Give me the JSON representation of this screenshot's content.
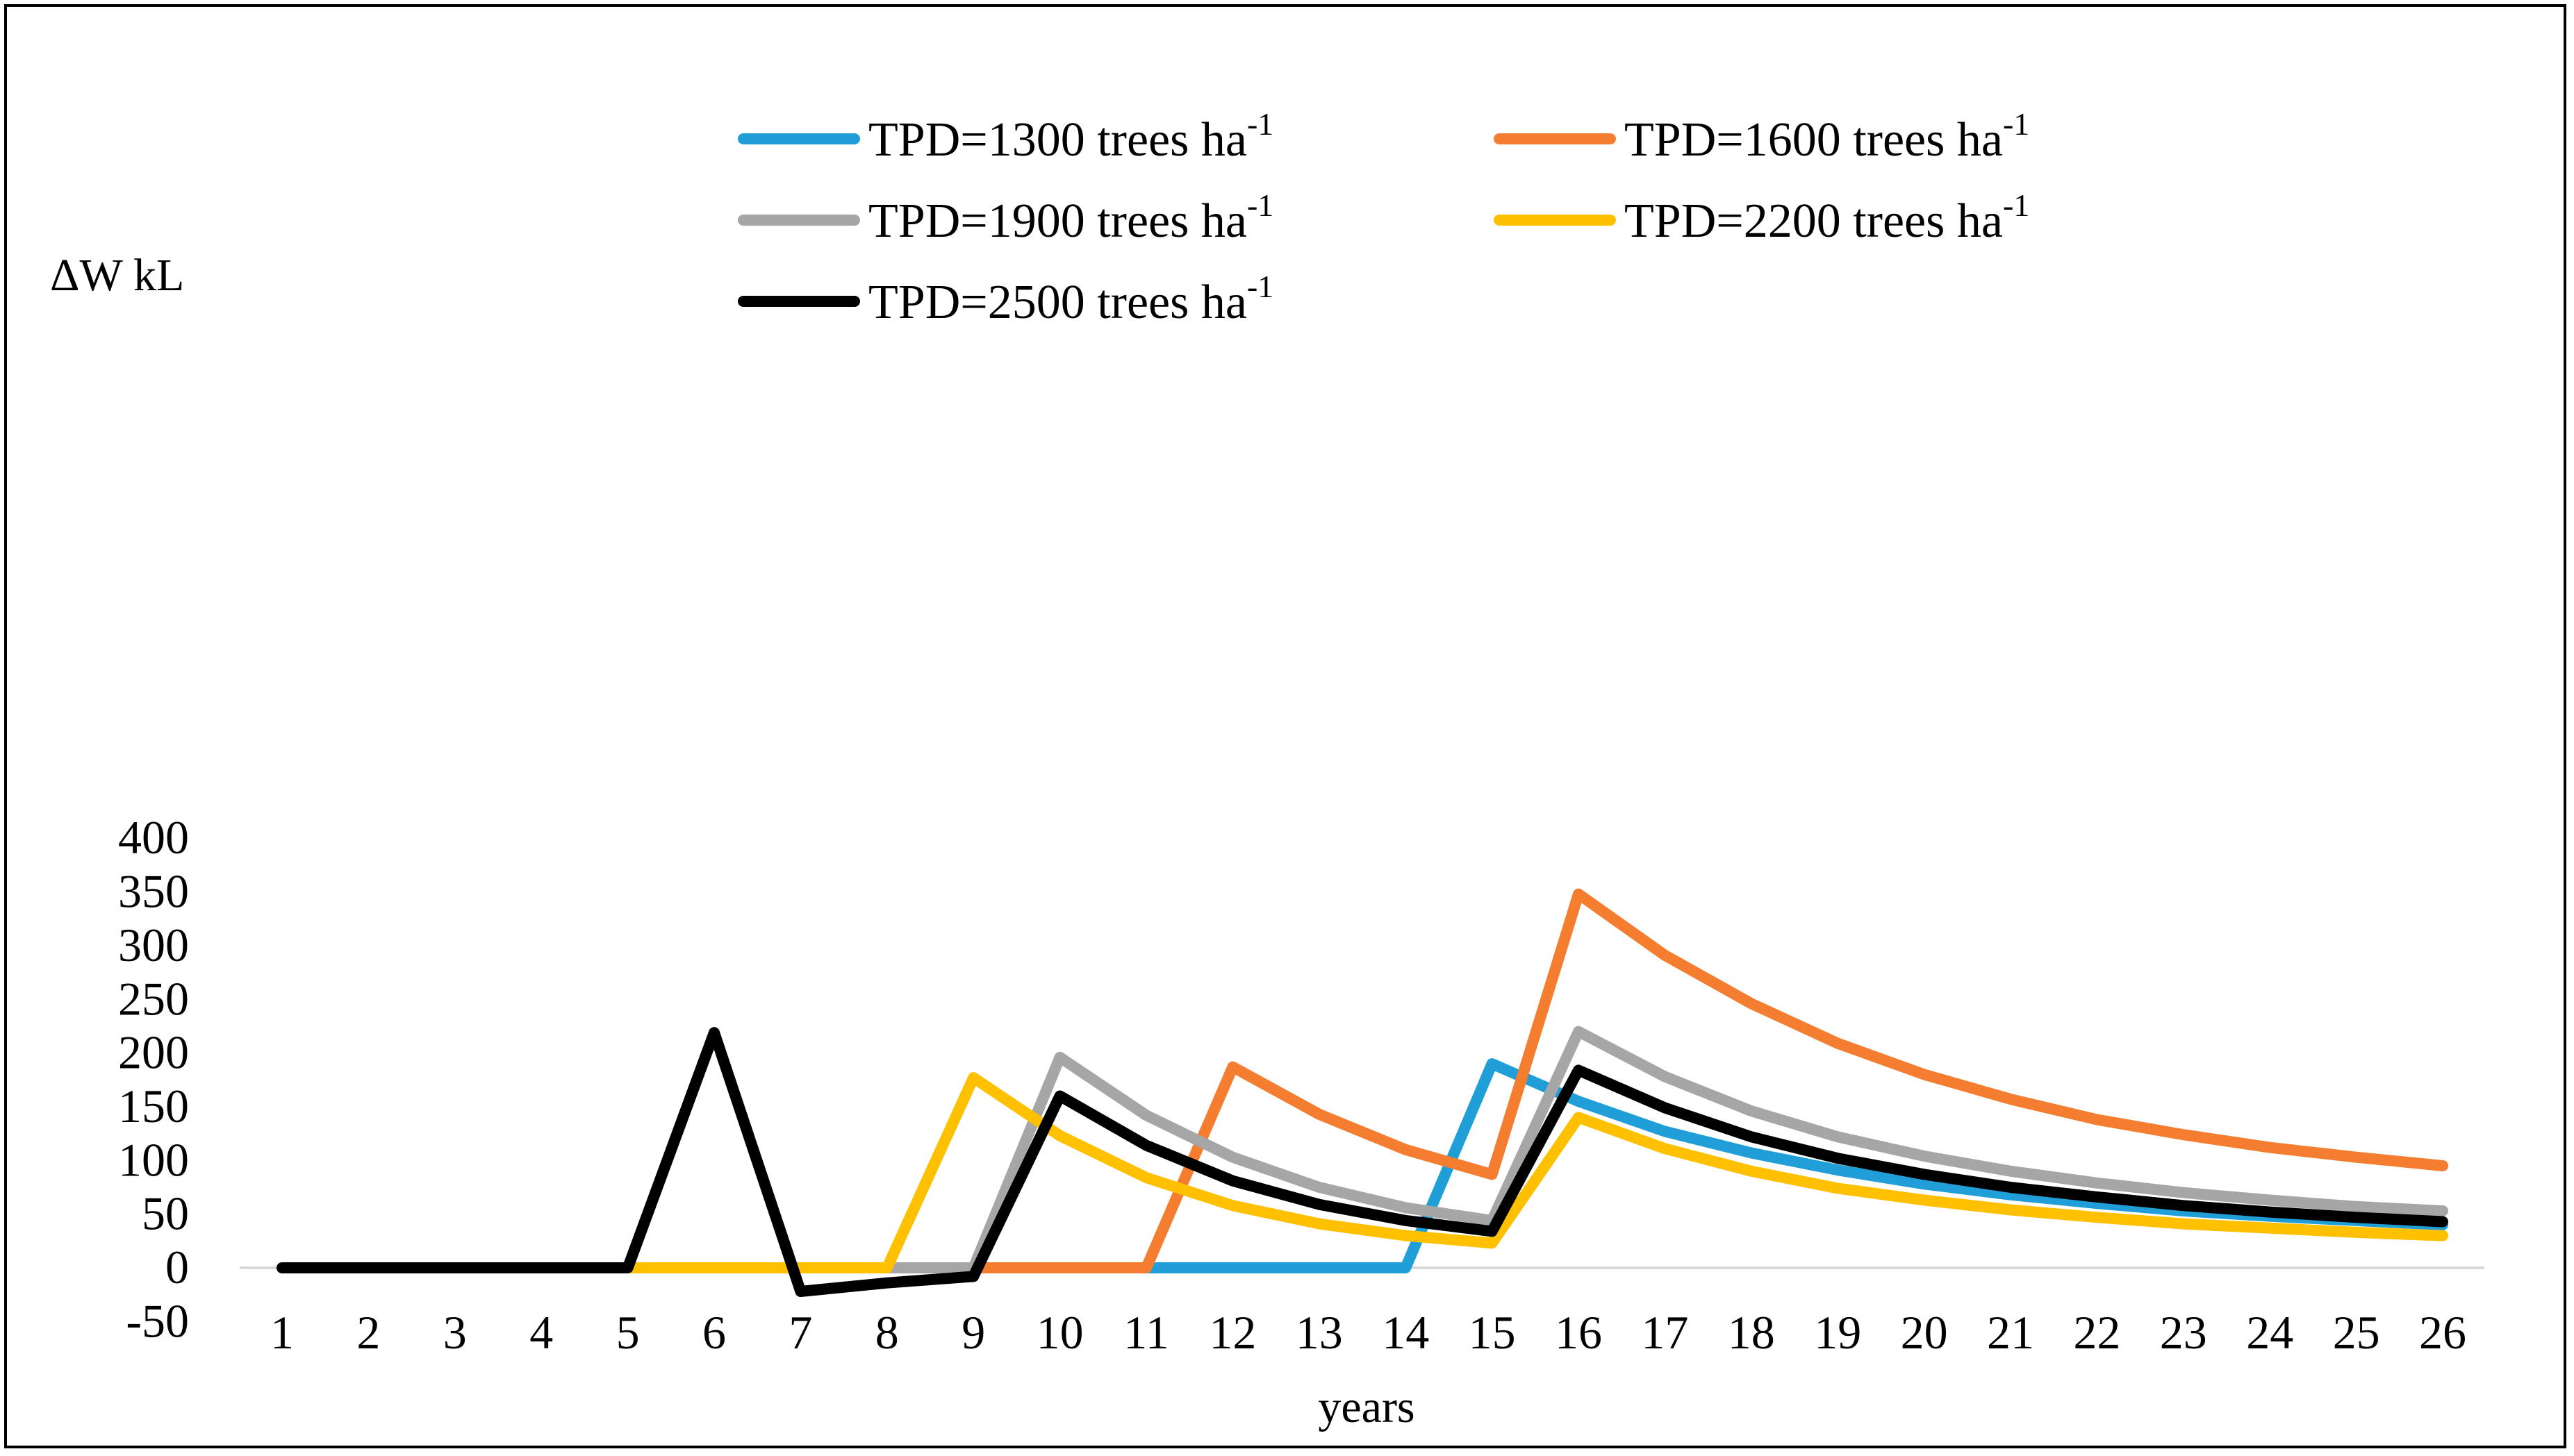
{
  "chart_data": {
    "type": "line",
    "title": "",
    "xlabel": "years",
    "ylabel": "ΔW kL",
    "ylim": [
      -50,
      400
    ],
    "yticks": [
      -50,
      0,
      50,
      100,
      150,
      200,
      250,
      300,
      350,
      400
    ],
    "ytick_labels": [
      "-50",
      "0",
      "50",
      "100",
      "150",
      "200",
      "250",
      "300",
      "350",
      "400"
    ],
    "categories": [
      "1",
      "2",
      "3",
      "4",
      "5",
      "6",
      "7",
      "8",
      "9",
      "10",
      "11",
      "12",
      "13",
      "14",
      "15",
      "16",
      "17",
      "18",
      "19",
      "20",
      "21",
      "22",
      "23",
      "24",
      "25",
      "26"
    ],
    "grid": false,
    "legend": "top-center",
    "legend_unit": "ha",
    "legend_exp": "-1",
    "series": [
      {
        "name": "TPD=1300 trees",
        "color": "#1F9ED8",
        "values": [
          0,
          0,
          0,
          0,
          0,
          0,
          0,
          0,
          0,
          0,
          0,
          0,
          0,
          0,
          190,
          155,
          127,
          107,
          91,
          78,
          68,
          60,
          53,
          48,
          44,
          40
        ]
      },
      {
        "name": "TPD=1600 trees",
        "color": "#F47D30",
        "values": [
          0,
          0,
          0,
          0,
          0,
          0,
          0,
          0,
          0,
          0,
          0,
          187,
          143,
          110,
          87,
          348,
          291,
          246,
          209,
          180,
          157,
          138,
          124,
          112,
          103,
          95
        ]
      },
      {
        "name": "TPD=1900 trees",
        "color": "#A6A6A6",
        "values": [
          0,
          0,
          0,
          0,
          0,
          0,
          0,
          0,
          0,
          196,
          142,
          103,
          75,
          56,
          44,
          220,
          178,
          146,
          122,
          104,
          90,
          79,
          70,
          63,
          57,
          53
        ]
      },
      {
        "name": "TPD=2200 trees",
        "color": "#FFC000",
        "values": [
          0,
          0,
          0,
          0,
          0,
          0,
          0,
          0,
          177,
          123,
          84,
          58,
          41,
          30,
          23,
          140,
          111,
          90,
          74,
          63,
          54,
          47,
          41,
          37,
          33,
          30
        ]
      },
      {
        "name": "TPD=2500 trees",
        "color": "#000000",
        "values": [
          0,
          0,
          0,
          0,
          0,
          219,
          -22,
          -14,
          -8,
          160,
          114,
          81,
          59,
          44,
          34,
          184,
          149,
          122,
          102,
          87,
          75,
          66,
          58,
          52,
          47,
          43
        ]
      }
    ]
  }
}
